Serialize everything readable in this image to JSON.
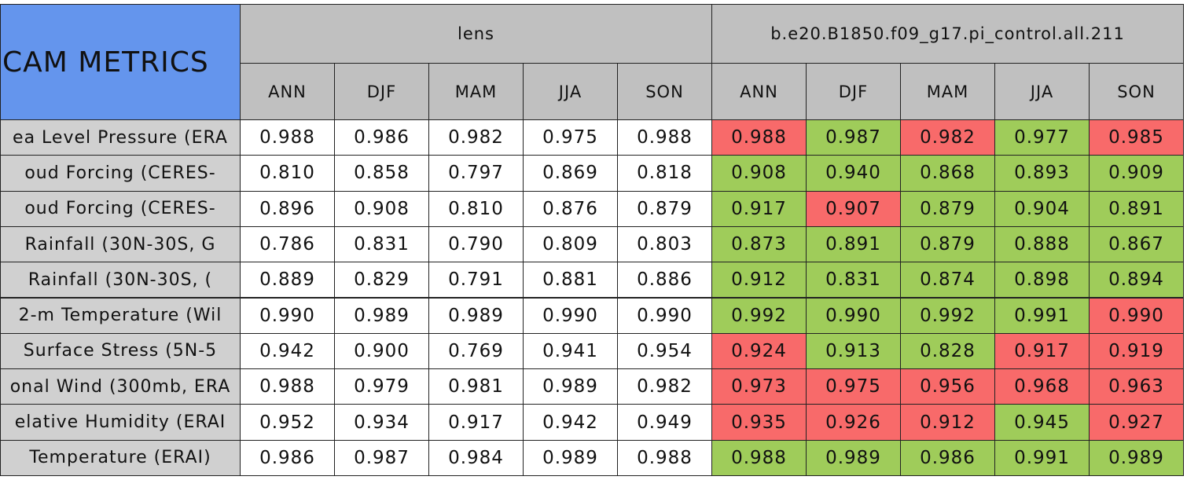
{
  "table": {
    "title": "CAM METRICS",
    "groups": [
      {
        "name": "lens",
        "columns": [
          "ANN",
          "DJF",
          "MAM",
          "JJA",
          "SON"
        ]
      },
      {
        "name": "b.e20.B1850.f09_g17.pi_control.all.211",
        "columns": [
          "ANN",
          "DJF",
          "MAM",
          "JJA",
          "SON"
        ]
      }
    ],
    "rows": [
      {
        "label": "ea Level Pressure (ERA",
        "values": [
          "0.988",
          "0.986",
          "0.982",
          "0.975",
          "0.988",
          "0.988",
          "0.987",
          "0.982",
          "0.977",
          "0.985"
        ],
        "colors": [
          "#ffffff",
          "#ffffff",
          "#ffffff",
          "#ffffff",
          "#ffffff",
          "#f86a6a",
          "#9fcc5a",
          "#f86a6a",
          "#9fcc5a",
          "#f86a6a"
        ]
      },
      {
        "label": "oud Forcing (CERES-",
        "values": [
          "0.810",
          "0.858",
          "0.797",
          "0.869",
          "0.818",
          "0.908",
          "0.940",
          "0.868",
          "0.893",
          "0.909"
        ],
        "colors": [
          "#ffffff",
          "#ffffff",
          "#ffffff",
          "#ffffff",
          "#ffffff",
          "#9fcc5a",
          "#9fcc5a",
          "#9fcc5a",
          "#9fcc5a",
          "#9fcc5a"
        ]
      },
      {
        "label": "oud Forcing (CERES-",
        "values": [
          "0.896",
          "0.908",
          "0.810",
          "0.876",
          "0.879",
          "0.917",
          "0.907",
          "0.879",
          "0.904",
          "0.891"
        ],
        "colors": [
          "#ffffff",
          "#ffffff",
          "#ffffff",
          "#ffffff",
          "#ffffff",
          "#9fcc5a",
          "#f86a6a",
          "#9fcc5a",
          "#9fcc5a",
          "#9fcc5a"
        ]
      },
      {
        "label": "Rainfall (30N-30S, G",
        "values": [
          "0.786",
          "0.831",
          "0.790",
          "0.809",
          "0.803",
          "0.873",
          "0.891",
          "0.879",
          "0.888",
          "0.867"
        ],
        "colors": [
          "#ffffff",
          "#ffffff",
          "#ffffff",
          "#ffffff",
          "#ffffff",
          "#9fcc5a",
          "#9fcc5a",
          "#9fcc5a",
          "#9fcc5a",
          "#9fcc5a"
        ]
      },
      {
        "label": "Rainfall (30N-30S, (",
        "values": [
          "0.889",
          "0.829",
          "0.791",
          "0.881",
          "0.886",
          "0.912",
          "0.831",
          "0.874",
          "0.898",
          "0.894"
        ],
        "colors": [
          "#ffffff",
          "#ffffff",
          "#ffffff",
          "#ffffff",
          "#ffffff",
          "#9fcc5a",
          "#9fcc5a",
          "#9fcc5a",
          "#9fcc5a",
          "#9fcc5a"
        ]
      },
      {
        "label": "2-m Temperature (Wil",
        "values": [
          "0.990",
          "0.989",
          "0.989",
          "0.990",
          "0.990",
          "0.992",
          "0.990",
          "0.992",
          "0.991",
          "0.990"
        ],
        "colors": [
          "#ffffff",
          "#ffffff",
          "#ffffff",
          "#ffffff",
          "#ffffff",
          "#9fcc5a",
          "#9fcc5a",
          "#9fcc5a",
          "#9fcc5a",
          "#f86a6a"
        ]
      },
      {
        "label": "Surface Stress (5N-5",
        "values": [
          "0.942",
          "0.900",
          "0.769",
          "0.941",
          "0.954",
          "0.924",
          "0.913",
          "0.828",
          "0.917",
          "0.919"
        ],
        "colors": [
          "#ffffff",
          "#ffffff",
          "#ffffff",
          "#ffffff",
          "#ffffff",
          "#f86a6a",
          "#9fcc5a",
          "#9fcc5a",
          "#f86a6a",
          "#f86a6a"
        ]
      },
      {
        "label": "onal Wind (300mb, ERA",
        "values": [
          "0.988",
          "0.979",
          "0.981",
          "0.989",
          "0.982",
          "0.973",
          "0.975",
          "0.956",
          "0.968",
          "0.963"
        ],
        "colors": [
          "#ffffff",
          "#ffffff",
          "#ffffff",
          "#ffffff",
          "#ffffff",
          "#f86a6a",
          "#f86a6a",
          "#f86a6a",
          "#f86a6a",
          "#f86a6a"
        ]
      },
      {
        "label": "elative Humidity (ERAI",
        "values": [
          "0.952",
          "0.934",
          "0.917",
          "0.942",
          "0.949",
          "0.935",
          "0.926",
          "0.912",
          "0.945",
          "0.927"
        ],
        "colors": [
          "#ffffff",
          "#ffffff",
          "#ffffff",
          "#ffffff",
          "#ffffff",
          "#f86a6a",
          "#f86a6a",
          "#f86a6a",
          "#9fcc5a",
          "#f86a6a"
        ]
      },
      {
        "label": "Temperature (ERAI)",
        "values": [
          "0.986",
          "0.987",
          "0.984",
          "0.989",
          "0.988",
          "0.988",
          "0.989",
          "0.986",
          "0.991",
          "0.989"
        ],
        "colors": [
          "#ffffff",
          "#ffffff",
          "#ffffff",
          "#ffffff",
          "#ffffff",
          "#9fcc5a",
          "#9fcc5a",
          "#9fcc5a",
          "#9fcc5a",
          "#9fcc5a"
        ]
      }
    ]
  }
}
